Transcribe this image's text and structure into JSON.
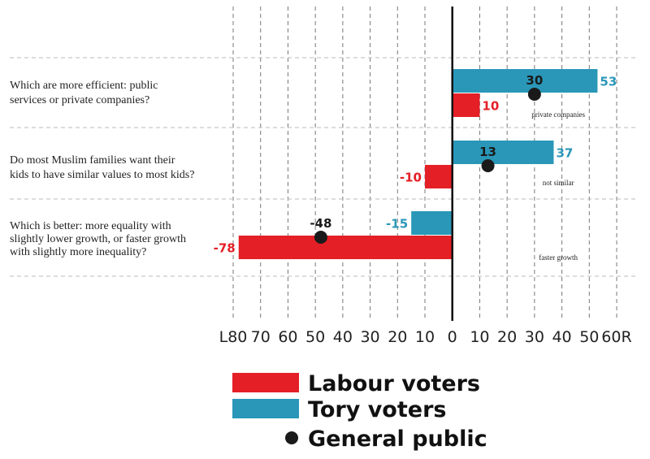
{
  "chart_data": {
    "type": "bar",
    "orientation": "horizontal",
    "xlim": [
      -80,
      60
    ],
    "tick_labels": [
      "L80",
      "70",
      "60",
      "50",
      "40",
      "30",
      "20",
      "10",
      "0",
      "10",
      "20",
      "30",
      "40",
      "50",
      "60R"
    ],
    "tick_values": [
      -80,
      -70,
      -60,
      -50,
      -40,
      -30,
      -20,
      -10,
      0,
      10,
      20,
      30,
      40,
      50,
      60
    ],
    "grid": true,
    "legend_position": "bottom",
    "categories": [
      [
        "Which are more efficient: public",
        "services or private companies?"
      ],
      [
        "Do most Muslim families want their",
        "kids to have similar values to most kids?"
      ],
      [
        "Which is better: more equality with",
        "slightly lower growth, or faster growth",
        "with slightly more inequality?"
      ]
    ],
    "annotations": [
      "private companies",
      "not similar",
      "faster growth"
    ],
    "series": [
      {
        "name": "Tory voters",
        "color": "#2a97b8",
        "values": [
          53,
          37,
          -15
        ],
        "labels": [
          "53",
          "37",
          "-15"
        ]
      },
      {
        "name": "Labour voters",
        "color": "#e41f26",
        "values": [
          10,
          -10,
          -78
        ],
        "labels": [
          "10",
          "-10",
          "-78"
        ]
      },
      {
        "name": "General public",
        "color": "#1a1a1a",
        "marker": "dot",
        "values": [
          30,
          13,
          -48
        ],
        "labels": [
          "30",
          "13",
          "-48"
        ]
      }
    ],
    "legend": [
      {
        "label": "Labour voters",
        "color": "#e41f26",
        "marker": "bar"
      },
      {
        "label": "Tory voters",
        "color": "#2a97b8",
        "marker": "bar"
      },
      {
        "label": "General public",
        "color": "#1a1a1a",
        "marker": "dot"
      }
    ]
  }
}
